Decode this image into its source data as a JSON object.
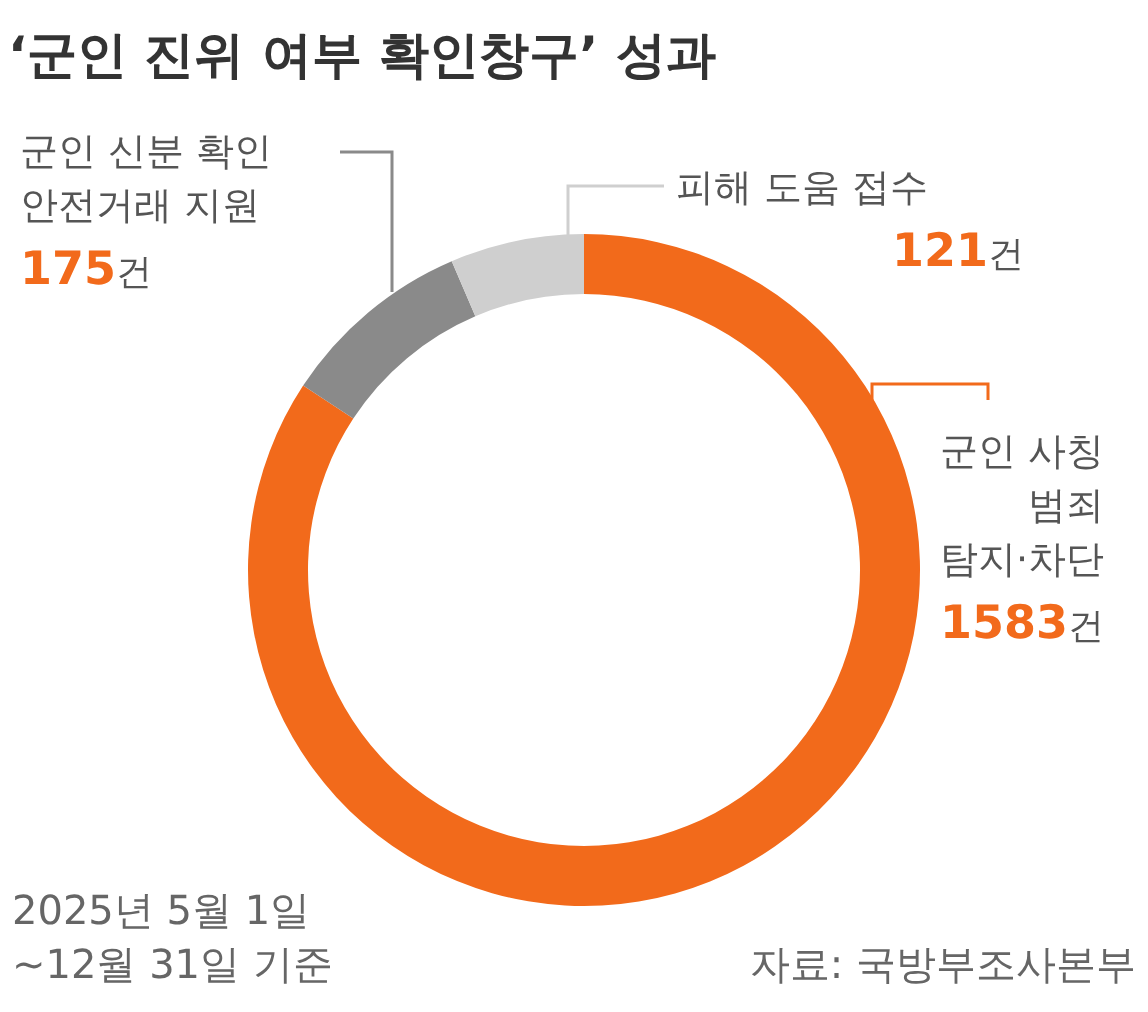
{
  "chart_data": {
    "type": "donut",
    "title": "‘군인 진위 여부 확인창구’ 성과",
    "categories": [
      "군인 사칭 범죄 탐지·차단",
      "군인 신분 확인 안전거래 지원",
      "피해 도움 접수"
    ],
    "values": [
      1583,
      175,
      121
    ],
    "value_labels": [
      "1583건",
      "175건",
      "121건"
    ],
    "colors": [
      "#f26a1b",
      "#8a8a8a",
      "#cfcfcf"
    ],
    "annotations": [
      "2025년 5월 1일 ~12월 31일 기준",
      "자료: 국방부조사본부"
    ],
    "legend": false
  }
}
